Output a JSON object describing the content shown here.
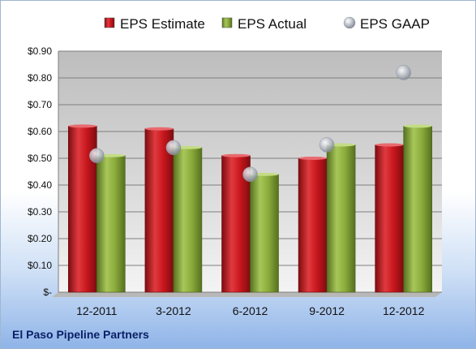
{
  "chart_data": {
    "type": "bar",
    "categories": [
      "12-2011",
      "3-2012",
      "6-2012",
      "9-2012",
      "12-2012"
    ],
    "series": [
      {
        "name": "EPS Estimate",
        "kind": "bar",
        "color": "#c0161e",
        "values": [
          0.62,
          0.61,
          0.51,
          0.5,
          0.55
        ]
      },
      {
        "name": "EPS Actual",
        "kind": "bar",
        "color": "#8aaa3a",
        "values": [
          0.51,
          0.54,
          0.44,
          0.55,
          0.62
        ]
      },
      {
        "name": "EPS GAAP",
        "kind": "scatter",
        "color": "#b9bfc9",
        "values": [
          0.51,
          0.54,
          0.44,
          0.55,
          0.82
        ]
      }
    ],
    "ylim": [
      0,
      0.9
    ],
    "yticks": [
      0,
      0.1,
      0.2,
      0.3,
      0.4,
      0.5,
      0.6,
      0.7,
      0.8,
      0.9
    ],
    "ytick_labels": [
      "$-",
      "$0.10",
      "$0.20",
      "$0.30",
      "$0.40",
      "$0.50",
      "$0.60",
      "$0.70",
      "$0.80",
      "$0.90"
    ],
    "grid": true,
    "legend": "top",
    "caption": "El Paso Pipeline Partners"
  }
}
